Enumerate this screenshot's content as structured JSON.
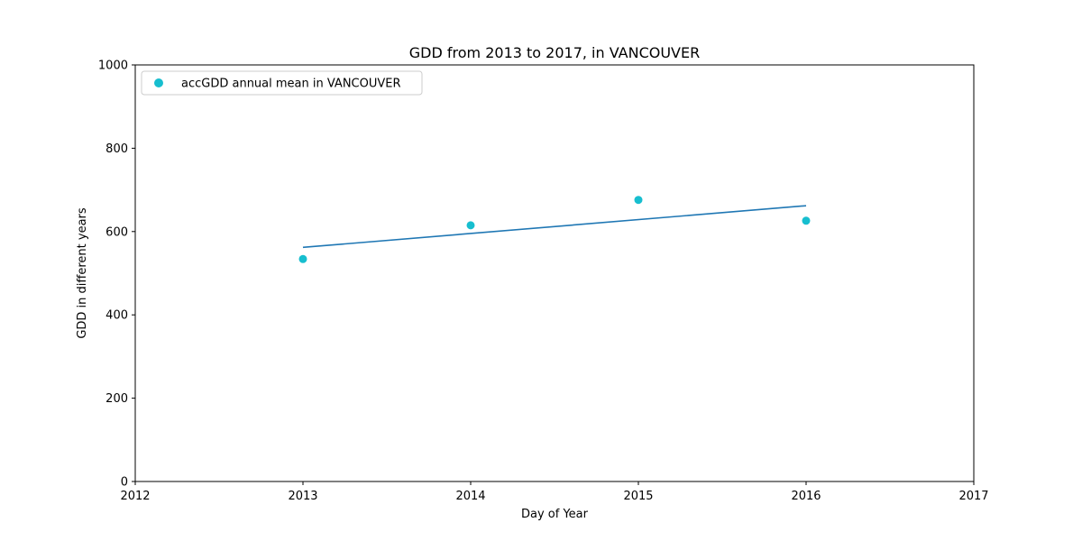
{
  "chart_data": {
    "type": "scatter",
    "title": "GDD from 2013 to 2017, in VANCOUVER",
    "xlabel": "Day of Year",
    "ylabel": "GDD in different years",
    "xlim": [
      2012,
      2017
    ],
    "ylim": [
      0,
      1000
    ],
    "xticks": [
      2012,
      2013,
      2014,
      2015,
      2016,
      2017
    ],
    "yticks": [
      0,
      200,
      400,
      600,
      800,
      1000
    ],
    "grid": false,
    "legend_position": "top-left",
    "series": [
      {
        "name": "accGDD annual mean in VANCOUVER",
        "kind": "scatter",
        "color": "#17becf",
        "points": [
          {
            "x": 2013,
            "y": 534
          },
          {
            "x": 2014,
            "y": 615
          },
          {
            "x": 2015,
            "y": 676
          },
          {
            "x": 2016,
            "y": 626
          }
        ]
      },
      {
        "kind": "line",
        "color": "#1f77b4",
        "points": [
          {
            "x": 2013,
            "y": 562
          },
          {
            "x": 2016,
            "y": 662
          }
        ]
      }
    ]
  }
}
